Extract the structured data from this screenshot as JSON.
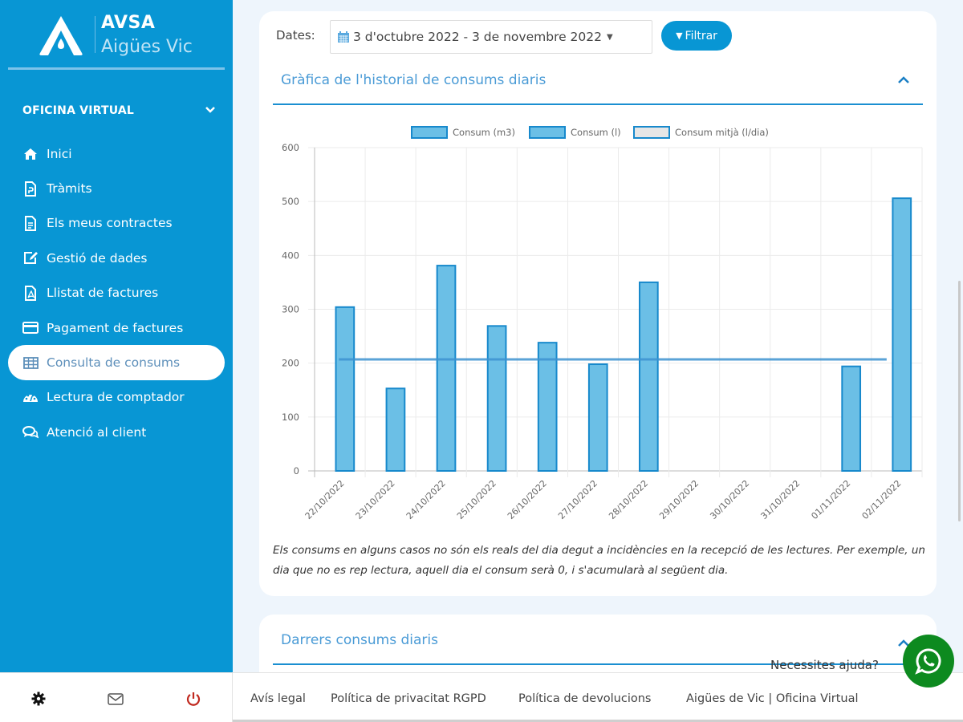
{
  "brand": {
    "title": "AVSA",
    "subtitle": "Aigües Vic"
  },
  "sidebar": {
    "section_label": "OFICINA VIRTUAL",
    "items": [
      {
        "label": "Inici",
        "icon": "home-icon"
      },
      {
        "label": "Tràmits",
        "icon": "document-icon"
      },
      {
        "label": "Els meus contractes",
        "icon": "contract-icon"
      },
      {
        "label": "Gestió de dades",
        "icon": "edit-icon"
      },
      {
        "label": "Llistat de factures",
        "icon": "pdf-icon"
      },
      {
        "label": "Pagament de factures",
        "icon": "credit-card-icon"
      },
      {
        "label": "Consulta de consums",
        "icon": "table-icon",
        "active": true
      },
      {
        "label": "Lectura de comptador",
        "icon": "gauge-icon"
      },
      {
        "label": "Atenció al client",
        "icon": "chat-icon"
      }
    ],
    "footer_icons": [
      "gear-icon",
      "mail-icon",
      "power-icon"
    ]
  },
  "filter": {
    "label": "Dates:",
    "range": "3 d'octubre 2022 - 3 de novembre 2022",
    "button": "Filtrar"
  },
  "chart_panel": {
    "title": "Gràfica de l'historial de consums diaris",
    "note": "Els consums en alguns casos no són els reals del dia degut a incidències en la recepció de les lectures. Per exemple, un dia que no es rep lectura, aquell dia el consum serà 0, i s'acumularà al següent dia."
  },
  "chart_data": {
    "type": "bar",
    "title": "",
    "xlabel": "",
    "ylabel": "",
    "ylim": [
      0,
      600
    ],
    "yticks": [
      0,
      100,
      200,
      300,
      400,
      500,
      600
    ],
    "grid": true,
    "legend_position": "top-center",
    "legend": [
      "Consum (m3)",
      "Consum (l)",
      "Consum mitjà (l/dia)"
    ],
    "categories": [
      "22/10/2022",
      "23/10/2022",
      "24/10/2022",
      "25/10/2022",
      "26/10/2022",
      "27/10/2022",
      "28/10/2022",
      "29/10/2022",
      "30/10/2022",
      "31/10/2022",
      "01/11/2022",
      "02/11/2022"
    ],
    "series": [
      {
        "name": "Consum (l)",
        "type": "bar",
        "values": [
          304,
          153,
          381,
          269,
          238,
          198,
          350,
          0,
          0,
          0,
          194,
          506
        ]
      },
      {
        "name": "Consum mitjà (l/dia)",
        "type": "line",
        "values": [
          207,
          207,
          207,
          207,
          207,
          207,
          207,
          207,
          207,
          207,
          207,
          207
        ]
      }
    ],
    "colors": {
      "bar_fill": "#6bbfe6",
      "bar_stroke": "#1789cc",
      "line": "#3e93d1",
      "legend_avg_fill": "#e6e6e6"
    }
  },
  "recent_panel": {
    "title": "Darrers consums diaris"
  },
  "footer": {
    "links": [
      "Avís legal",
      "Política de privacitat RGPD",
      "Política de devolucions",
      "Aigües de Vic | Oficina Virtual"
    ]
  },
  "help": {
    "text": "Necessites ajuda?",
    "icon": "whatsapp-icon"
  },
  "colors": {
    "primary": "#0896d4",
    "background": "#eef5fc",
    "whatsapp": "#0d8a1f",
    "power": "#c0281e"
  }
}
